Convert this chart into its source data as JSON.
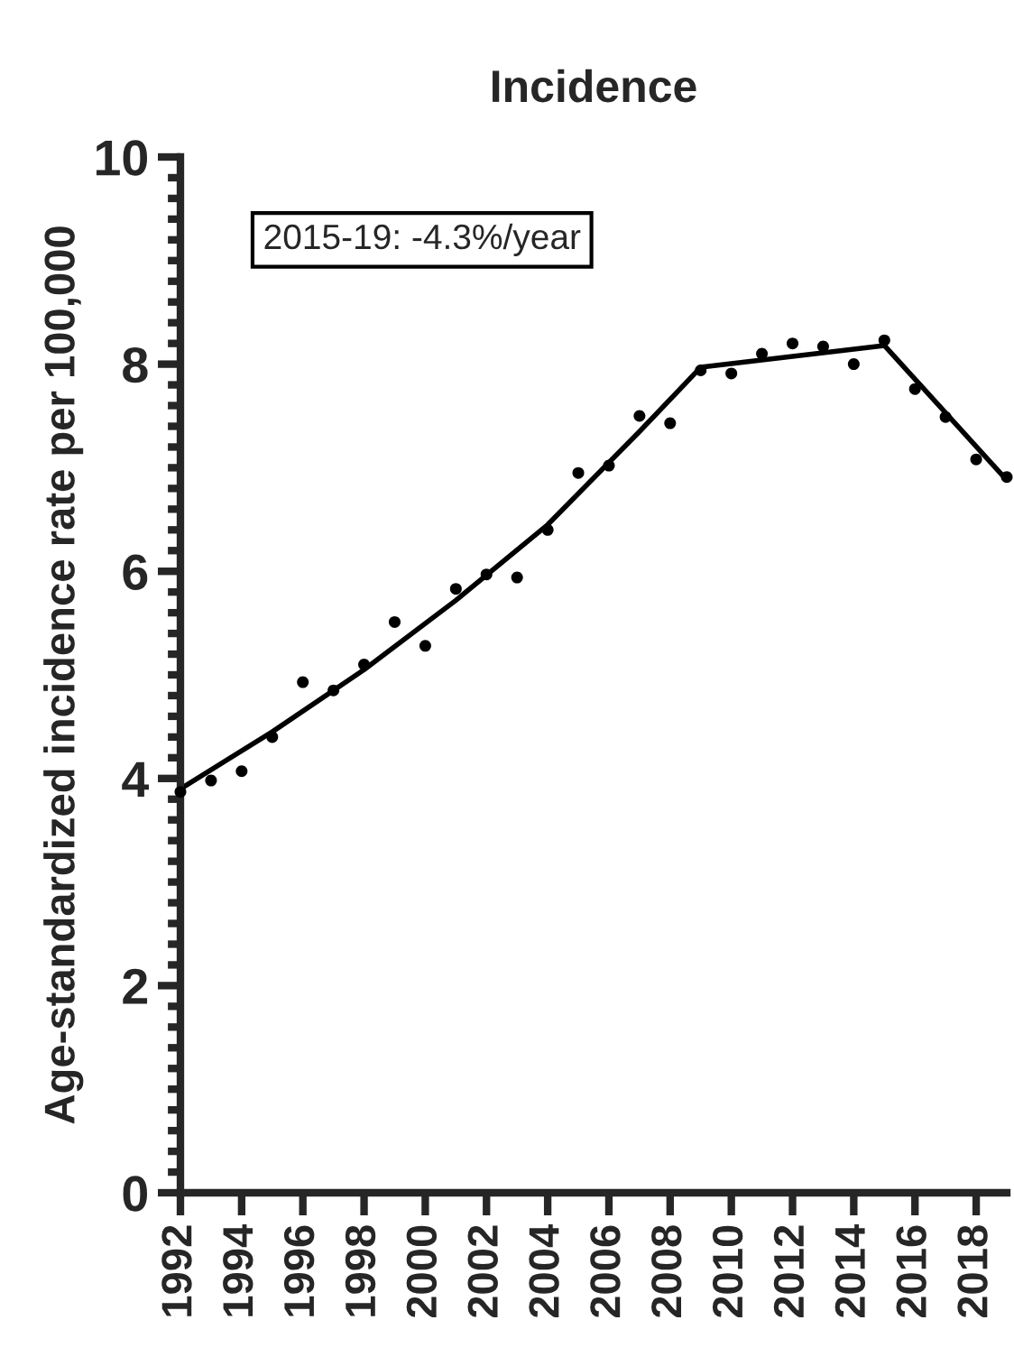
{
  "chart_data": {
    "type": "scatter",
    "title": "Incidence",
    "ylabel": "Age-standardized incidence rate per 100,000",
    "x": [
      1992,
      1993,
      1994,
      1995,
      1996,
      1997,
      1998,
      1999,
      2000,
      2001,
      2002,
      2003,
      2004,
      2005,
      2006,
      2007,
      2008,
      2009,
      2010,
      2011,
      2012,
      2013,
      2014,
      2015,
      2016,
      2017,
      2018,
      2019
    ],
    "series": [
      {
        "color": "#000000",
        "marker": "circle",
        "values": [
          3.87,
          3.98,
          4.07,
          4.4,
          4.93,
          4.85,
          5.1,
          5.51,
          5.28,
          5.83,
          5.97,
          5.94,
          6.4,
          6.95,
          7.02,
          7.5,
          7.43,
          7.94,
          7.91,
          8.1,
          8.2,
          8.17,
          8.0,
          8.23,
          7.76,
          7.49,
          7.08,
          6.91
        ]
      },
      {
        "type": "line",
        "color": "#000000",
        "line_style": "solid",
        "x": [
          1992,
          1995,
          1998,
          2001,
          2004,
          2007,
          2009,
          2015,
          2019
        ],
        "values": [
          3.9,
          4.45,
          5.05,
          5.72,
          6.45,
          7.35,
          7.97,
          8.18,
          6.88
        ]
      }
    ],
    "annotations": [
      "2015-19: -4.3%/year"
    ],
    "xlim": [
      1992,
      2019
    ],
    "xticks": [
      1992,
      1994,
      1996,
      1998,
      2000,
      2002,
      2004,
      2006,
      2008,
      2010,
      2012,
      2014,
      2016,
      2018
    ],
    "ylim": [
      0,
      10
    ],
    "yticks": [
      0,
      2,
      4,
      6,
      8,
      10
    ],
    "grid": false,
    "legend": false
  }
}
